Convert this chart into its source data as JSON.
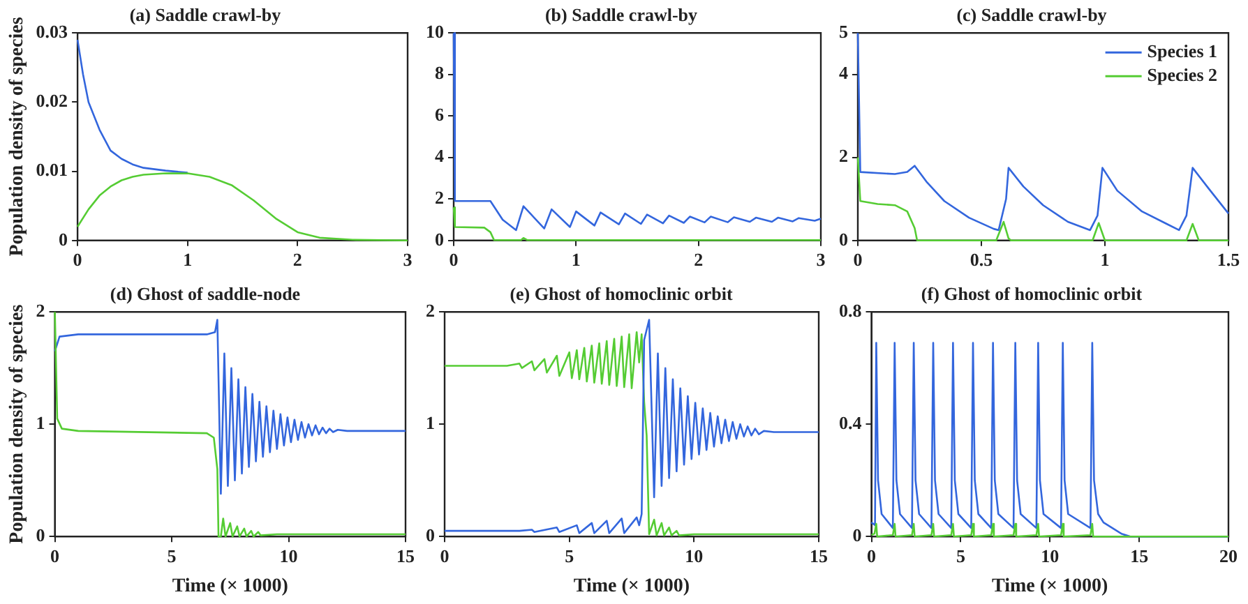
{
  "chart_data": [
    {
      "type": "line",
      "title": "(a) Saddle crawl-by",
      "ylabel": "Population density of species",
      "xlim": [
        0,
        3
      ],
      "xticks": [
        0,
        1,
        2,
        3
      ],
      "ylim": [
        0,
        0.03
      ],
      "yticks": [
        0,
        0.01,
        0.02,
        0.03
      ],
      "marker": "none",
      "series": [
        {
          "color": "#3366dd",
          "x": [
            0,
            0.05,
            0.1,
            0.2,
            0.3,
            0.4,
            0.5,
            0.6,
            0.8,
            1.0
          ],
          "values": [
            0.029,
            0.024,
            0.02,
            0.016,
            0.013,
            0.0118,
            0.011,
            0.0105,
            0.0101,
            0.0098
          ]
        },
        {
          "color": "#55cc33",
          "x": [
            0,
            0.1,
            0.2,
            0.3,
            0.4,
            0.5,
            0.6,
            0.8,
            1.0,
            1.2,
            1.4,
            1.6,
            1.8,
            2.0,
            2.2,
            2.5,
            3
          ],
          "values": [
            0.002,
            0.0045,
            0.0065,
            0.0078,
            0.0087,
            0.0092,
            0.0095,
            0.0097,
            0.0097,
            0.0092,
            0.008,
            0.0058,
            0.0032,
            0.0012,
            0.0004,
            0.0001,
            0
          ]
        }
      ]
    },
    {
      "type": "line",
      "title": "(b) Saddle crawl-by",
      "xlim": [
        0,
        3
      ],
      "xticks": [
        0,
        1,
        2,
        3
      ],
      "ylim": [
        0,
        10
      ],
      "yticks": [
        0,
        2,
        4,
        6,
        8,
        10
      ],
      "marker": "none",
      "series": [
        {
          "color": "#3366dd",
          "x": [
            0,
            0.01,
            0.3,
            0.4,
            0.51,
            0.57,
            0.74,
            0.8,
            0.95,
            1.0,
            1.15,
            1.2,
            1.35,
            1.4,
            1.53,
            1.58,
            1.71,
            1.76,
            1.88,
            1.93,
            2.05,
            2.1,
            2.24,
            2.29,
            2.42,
            2.47,
            2.6,
            2.65,
            2.77,
            2.82,
            2.95,
            3.0
          ],
          "values": [
            10,
            1.9,
            1.9,
            1.0,
            0.5,
            1.65,
            0.58,
            1.5,
            0.65,
            1.4,
            0.72,
            1.35,
            0.78,
            1.3,
            0.8,
            1.25,
            0.83,
            1.2,
            0.85,
            1.15,
            0.87,
            1.15,
            0.88,
            1.12,
            0.9,
            1.1,
            0.9,
            1.1,
            0.92,
            1.08,
            0.95,
            1.05
          ]
        },
        {
          "color": "#55cc33",
          "x": [
            0,
            0.01,
            0.25,
            0.3,
            0.33,
            0.55,
            0.57,
            0.6,
            3
          ],
          "values": [
            1.6,
            0.65,
            0.62,
            0.4,
            0.02,
            0.02,
            0.12,
            0.02,
            0.02
          ]
        }
      ]
    },
    {
      "type": "line",
      "title": "(c) Saddle crawl-by",
      "xlim": [
        0,
        1.5
      ],
      "xticks": [
        0,
        0.5,
        1,
        1.5
      ],
      "ylim": [
        0,
        5
      ],
      "yticks": [
        0,
        2,
        4,
        5
      ],
      "marker": "none",
      "legend": "top right",
      "series": [
        {
          "name": "Species 1",
          "color": "#3366dd",
          "x": [
            0,
            0.01,
            0.15,
            0.2,
            0.23,
            0.28,
            0.35,
            0.45,
            0.55,
            0.57,
            0.6,
            0.61,
            0.67,
            0.75,
            0.85,
            0.94,
            0.97,
            0.99,
            1.05,
            1.15,
            1.25,
            1.3,
            1.33,
            1.355,
            1.42,
            1.5
          ],
          "values": [
            5,
            1.65,
            1.6,
            1.65,
            1.8,
            1.4,
            0.95,
            0.55,
            0.28,
            0.25,
            1.0,
            1.75,
            1.3,
            0.85,
            0.45,
            0.25,
            0.6,
            1.75,
            1.2,
            0.7,
            0.4,
            0.25,
            0.6,
            1.75,
            1.25,
            0.65
          ]
        },
        {
          "name": "Species 2",
          "color": "#55cc33",
          "x": [
            0,
            0.01,
            0.08,
            0.15,
            0.2,
            0.23,
            0.24,
            0.56,
            0.59,
            0.61,
            0.62,
            0.95,
            0.975,
            1.0,
            1.33,
            1.355,
            1.38,
            1.5
          ],
          "values": [
            2,
            0.95,
            0.88,
            0.85,
            0.7,
            0.3,
            0,
            0,
            0.45,
            0.05,
            0,
            0,
            0.42,
            0,
            0,
            0.4,
            0,
            0
          ]
        }
      ]
    },
    {
      "type": "line",
      "title": "(d) Ghost of saddle-node",
      "xlabel": "Time (× 1000)",
      "ylabel": "Population density of species",
      "xlim": [
        0,
        15
      ],
      "xticks": [
        0,
        5,
        10,
        15
      ],
      "ylim": [
        0,
        2
      ],
      "yticks": [
        0,
        1,
        2
      ],
      "marker": "none",
      "series": [
        {
          "color": "#3366dd",
          "x": [
            0,
            0.2,
            1,
            6.5,
            6.85,
            6.95,
            7.1,
            7.25,
            7.4,
            7.55,
            7.7,
            7.85,
            8.0,
            8.15,
            8.3,
            8.45,
            8.6,
            8.75,
            8.9,
            9.05,
            9.2,
            9.35,
            9.5,
            9.65,
            9.8,
            9.95,
            10.1,
            10.25,
            10.4,
            10.55,
            10.7,
            10.85,
            11.0,
            11.15,
            11.3,
            11.45,
            11.6,
            11.75,
            11.9,
            12.1,
            12.5,
            15
          ],
          "values": [
            1.65,
            1.78,
            1.8,
            1.8,
            1.82,
            1.93,
            0.38,
            1.63,
            0.45,
            1.5,
            0.5,
            1.4,
            0.56,
            1.33,
            0.62,
            1.27,
            0.67,
            1.2,
            0.71,
            1.16,
            0.75,
            1.12,
            0.78,
            1.09,
            0.81,
            1.06,
            0.84,
            1.04,
            0.86,
            1.02,
            0.88,
            1.0,
            0.9,
            0.99,
            0.91,
            0.97,
            0.92,
            0.96,
            0.93,
            0.95,
            0.94,
            0.94
          ]
        },
        {
          "color": "#55cc33",
          "x": [
            0,
            0.1,
            0.3,
            1,
            6.5,
            6.8,
            6.95,
            7.0,
            7.1,
            7.2,
            7.3,
            7.5,
            7.6,
            7.8,
            7.9,
            8.1,
            8.2,
            8.4,
            8.5,
            8.7,
            8.8,
            9.5,
            15
          ],
          "values": [
            2,
            1.05,
            0.96,
            0.94,
            0.92,
            0.88,
            0.6,
            0,
            0,
            0.16,
            0,
            0.12,
            0,
            0.09,
            0,
            0.07,
            0,
            0.05,
            0,
            0.04,
            0.01,
            0.02,
            0.02
          ]
        }
      ]
    },
    {
      "type": "line",
      "title": "(e) Ghost of homoclinic orbit",
      "xlabel": "Time (× 1000)",
      "xlim": [
        0,
        15
      ],
      "xticks": [
        0,
        5,
        10,
        15
      ],
      "ylim": [
        0,
        2
      ],
      "yticks": [
        0,
        1,
        2
      ],
      "marker": "none",
      "series": [
        {
          "color": "#55cc33",
          "x": [
            0,
            2.5,
            3.0,
            3.1,
            3.5,
            3.6,
            4.0,
            4.1,
            4.5,
            4.6,
            5.0,
            5.1,
            5.3,
            5.4,
            5.6,
            5.7,
            5.9,
            6.0,
            6.2,
            6.3,
            6.5,
            6.6,
            6.8,
            6.9,
            7.1,
            7.2,
            7.4,
            7.5,
            7.7,
            7.8,
            7.9,
            8.0,
            8.1,
            8.2,
            8.4,
            8.5,
            8.7,
            8.8,
            9.0,
            9.1,
            9.3,
            9.4,
            10,
            15
          ],
          "values": [
            1.52,
            1.52,
            1.54,
            1.5,
            1.56,
            1.48,
            1.58,
            1.46,
            1.61,
            1.43,
            1.64,
            1.41,
            1.66,
            1.4,
            1.68,
            1.38,
            1.7,
            1.37,
            1.72,
            1.36,
            1.74,
            1.35,
            1.76,
            1.34,
            1.78,
            1.33,
            1.8,
            1.32,
            1.82,
            1.55,
            1.8,
            1.2,
            0.9,
            0.02,
            0.15,
            0.01,
            0.12,
            0.01,
            0.08,
            0.01,
            0.05,
            0.01,
            0.02,
            0.02
          ]
        },
        {
          "color": "#3366dd",
          "x": [
            0,
            3,
            3.5,
            3.6,
            4.5,
            4.6,
            5.3,
            5.4,
            5.9,
            6.0,
            6.5,
            6.6,
            7.1,
            7.2,
            7.7,
            7.8,
            7.9,
            8.0,
            8.2,
            8.4,
            8.55,
            8.7,
            8.85,
            9.0,
            9.15,
            9.3,
            9.45,
            9.6,
            9.75,
            9.9,
            10.05,
            10.2,
            10.35,
            10.5,
            10.65,
            10.8,
            10.95,
            11.1,
            11.25,
            11.4,
            11.55,
            11.7,
            11.85,
            12.0,
            12.15,
            12.3,
            12.45,
            12.6,
            12.8,
            13.2,
            15
          ],
          "values": [
            0.05,
            0.05,
            0.06,
            0.04,
            0.08,
            0.04,
            0.1,
            0.03,
            0.12,
            0.03,
            0.14,
            0.03,
            0.16,
            0.03,
            0.17,
            0.1,
            0.2,
            1.75,
            1.93,
            0.35,
            1.63,
            0.45,
            1.5,
            0.52,
            1.4,
            0.58,
            1.32,
            0.64,
            1.25,
            0.69,
            1.19,
            0.73,
            1.14,
            0.77,
            1.1,
            0.8,
            1.07,
            0.83,
            1.04,
            0.85,
            1.02,
            0.87,
            1.0,
            0.89,
            0.98,
            0.9,
            0.96,
            0.91,
            0.94,
            0.93,
            0.93
          ]
        }
      ]
    },
    {
      "type": "line",
      "title": "(f) Ghost of homoclinic orbit",
      "xlabel": "Time (× 1000)",
      "xlim": [
        0,
        20
      ],
      "xticks": [
        0,
        5,
        10,
        15,
        20
      ],
      "ylim": [
        0,
        0.8
      ],
      "yticks": [
        0,
        0.4,
        0.8
      ],
      "marker": "none",
      "series": [
        {
          "color": "#3366dd",
          "x": [
            0,
            0.2,
            0.27,
            0.37,
            0.57,
            1.2,
            1.3,
            1.4,
            1.6,
            2.27,
            2.37,
            2.47,
            2.67,
            3.36,
            3.46,
            3.56,
            3.76,
            4.47,
            4.57,
            4.67,
            4.87,
            5.59,
            5.69,
            5.79,
            5.99,
            6.71,
            6.81,
            6.91,
            7.11,
            7.96,
            8.06,
            8.16,
            8.36,
            9.24,
            9.34,
            9.44,
            9.64,
            10.62,
            10.72,
            10.82,
            11.02,
            12.27,
            12.37,
            12.47,
            12.7,
            13,
            13.5,
            14,
            14.5,
            20
          ],
          "values": [
            0.05,
            0.04,
            0.69,
            0.2,
            0.08,
            0.03,
            0.69,
            0.2,
            0.08,
            0.03,
            0.69,
            0.2,
            0.08,
            0.03,
            0.69,
            0.2,
            0.08,
            0.03,
            0.69,
            0.2,
            0.08,
            0.03,
            0.69,
            0.2,
            0.08,
            0.03,
            0.69,
            0.2,
            0.08,
            0.03,
            0.69,
            0.2,
            0.08,
            0.03,
            0.69,
            0.2,
            0.08,
            0.03,
            0.69,
            0.2,
            0.08,
            0.03,
            0.69,
            0.2,
            0.08,
            0.05,
            0.03,
            0.01,
            0,
            0
          ]
        },
        {
          "color": "#55cc33",
          "x": [
            0,
            0.17,
            0.27,
            0.32,
            1.2,
            1.3,
            1.35,
            2.27,
            2.37,
            2.42,
            3.36,
            3.46,
            3.51,
            4.47,
            4.57,
            4.62,
            5.59,
            5.69,
            5.74,
            6.71,
            6.81,
            6.86,
            7.96,
            8.06,
            8.11,
            9.24,
            9.34,
            9.39,
            10.62,
            10.72,
            10.77,
            12.27,
            12.37,
            12.42,
            20
          ],
          "values": [
            0.005,
            0.01,
            0.045,
            0,
            0.005,
            0.045,
            0,
            0.005,
            0.045,
            0,
            0.005,
            0.045,
            0,
            0.005,
            0.045,
            0,
            0.005,
            0.045,
            0,
            0.005,
            0.045,
            0,
            0.005,
            0.045,
            0,
            0.005,
            0.045,
            0,
            0.005,
            0.045,
            0,
            0.005,
            0.045,
            0,
            0
          ]
        }
      ]
    }
  ]
}
